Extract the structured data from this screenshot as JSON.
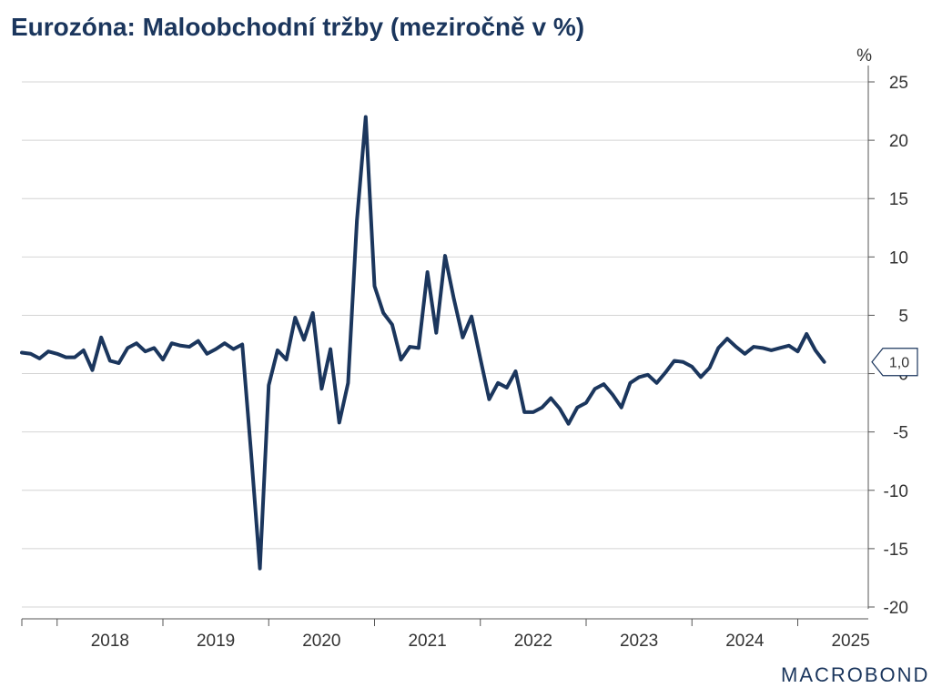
{
  "chart_data": {
    "type": "line",
    "title": "Eurozóna: Maloobchodní tržby (meziročně v %)",
    "ylabel": "%",
    "ylim": [
      -20,
      25
    ],
    "yticks": [
      25,
      20,
      15,
      10,
      5,
      0,
      -5,
      -10,
      -15,
      -20
    ],
    "xlim": [
      "2017-09",
      "2025-09"
    ],
    "xtick_labels": [
      "2018",
      "2019",
      "2020",
      "2021",
      "2022",
      "2023",
      "2024",
      "2025"
    ],
    "grid": true,
    "y_axis_side": "right",
    "last_value_label": "1,0",
    "series": [
      {
        "color": "#1b365d",
        "points": [
          [
            "2017-09",
            1.8
          ],
          [
            "2017-10",
            1.7
          ],
          [
            "2017-11",
            1.3
          ],
          [
            "2017-12",
            1.9
          ],
          [
            "2018-01",
            1.7
          ],
          [
            "2018-02",
            1.4
          ],
          [
            "2018-03",
            1.4
          ],
          [
            "2018-04",
            2.0
          ],
          [
            "2018-05",
            0.3
          ],
          [
            "2018-06",
            3.1
          ],
          [
            "2018-07",
            1.1
          ],
          [
            "2018-08",
            0.9
          ],
          [
            "2018-09",
            2.2
          ],
          [
            "2018-10",
            2.6
          ],
          [
            "2018-11",
            1.9
          ],
          [
            "2018-12",
            2.2
          ],
          [
            "2019-01",
            1.2
          ],
          [
            "2019-02",
            2.6
          ],
          [
            "2019-03",
            2.4
          ],
          [
            "2019-04",
            2.3
          ],
          [
            "2019-05",
            2.8
          ],
          [
            "2019-06",
            1.7
          ],
          [
            "2019-07",
            2.1
          ],
          [
            "2019-08",
            2.6
          ],
          [
            "2019-09",
            2.1
          ],
          [
            "2019-10",
            2.5
          ],
          [
            "2019-11",
            -6.8
          ],
          [
            "2019-12",
            -16.7
          ],
          [
            "2020-01",
            -1.0
          ],
          [
            "2020-02",
            2.0
          ],
          [
            "2020-03",
            1.2
          ],
          [
            "2020-04",
            4.8
          ],
          [
            "2020-05",
            2.9
          ],
          [
            "2020-06",
            5.2
          ],
          [
            "2020-07",
            -1.3
          ],
          [
            "2020-08",
            2.1
          ],
          [
            "2020-09",
            -4.2
          ],
          [
            "2020-10",
            -0.8
          ],
          [
            "2020-11",
            13.1
          ],
          [
            "2020-12",
            22.0
          ],
          [
            "2021-01",
            7.5
          ],
          [
            "2021-02",
            5.2
          ],
          [
            "2021-03",
            4.2
          ],
          [
            "2021-04",
            1.2
          ],
          [
            "2021-05",
            2.3
          ],
          [
            "2021-06",
            2.2
          ],
          [
            "2021-07",
            8.7
          ],
          [
            "2021-08",
            3.5
          ],
          [
            "2021-09",
            10.1
          ],
          [
            "2021-10",
            6.4
          ],
          [
            "2021-11",
            3.1
          ],
          [
            "2021-12",
            4.9
          ],
          [
            "2022-01",
            1.3
          ],
          [
            "2022-02",
            -2.2
          ],
          [
            "2022-03",
            -0.8
          ],
          [
            "2022-04",
            -1.2
          ],
          [
            "2022-05",
            0.2
          ],
          [
            "2022-06",
            -3.3
          ],
          [
            "2022-07",
            -3.3
          ],
          [
            "2022-08",
            -2.9
          ],
          [
            "2022-09",
            -2.1
          ],
          [
            "2022-10",
            -3.0
          ],
          [
            "2022-11",
            -4.3
          ],
          [
            "2022-12",
            -2.9
          ],
          [
            "2023-01",
            -2.5
          ],
          [
            "2023-02",
            -1.3
          ],
          [
            "2023-03",
            -0.9
          ],
          [
            "2023-04",
            -1.8
          ],
          [
            "2023-05",
            -2.9
          ],
          [
            "2023-06",
            -0.8
          ],
          [
            "2023-07",
            -0.3
          ],
          [
            "2023-08",
            -0.1
          ],
          [
            "2023-09",
            -0.8
          ],
          [
            "2023-10",
            0.1
          ],
          [
            "2023-11",
            1.1
          ],
          [
            "2023-12",
            1.0
          ],
          [
            "2024-01",
            0.6
          ],
          [
            "2024-02",
            -0.3
          ],
          [
            "2024-03",
            0.5
          ],
          [
            "2024-04",
            2.2
          ],
          [
            "2024-05",
            3.0
          ],
          [
            "2024-06",
            2.3
          ],
          [
            "2024-07",
            1.7
          ],
          [
            "2024-08",
            2.3
          ],
          [
            "2024-09",
            2.2
          ],
          [
            "2024-10",
            2.0
          ],
          [
            "2024-11",
            2.2
          ],
          [
            "2024-12",
            2.4
          ],
          [
            "2025-01",
            1.9
          ],
          [
            "2025-02",
            3.4
          ],
          [
            "2025-03",
            2.0
          ],
          [
            "2025-04",
            1.0
          ]
        ]
      }
    ]
  },
  "branding": {
    "logo_text": "MACROBOND"
  }
}
